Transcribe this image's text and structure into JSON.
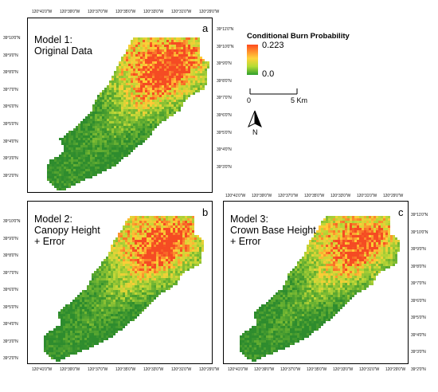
{
  "panels": [
    {
      "id": "a",
      "letter": "a",
      "title": "Model 1:\nOriginal Data"
    },
    {
      "id": "b",
      "letter": "b",
      "title": "Model 2:\nCanopy Height\n+ Error"
    },
    {
      "id": "c",
      "letter": "c",
      "title": "Model 3:\nCrown Base Height\n+ Error"
    }
  ],
  "longitude_labels": [
    "120°41'0\"W",
    "120°39'0\"W",
    "120°37'0\"W",
    "120°35'0\"W",
    "120°33'0\"W",
    "120°31'0\"W",
    "120°29'0\"W"
  ],
  "latitude_labels": [
    "39°11'0\"N",
    "39°10'0\"N",
    "39°9'0\"N",
    "39°8'0\"N",
    "39°7'0\"N",
    "39°6'0\"N",
    "39°5'0\"N",
    "39°4'0\"N",
    "39°3'0\"N",
    "39°2'0\"N"
  ],
  "legend": {
    "title": "Conditional Burn Probability",
    "max_label": "0.223",
    "min_label": "0.0",
    "colors": {
      "high": "#ff4a1e",
      "mid": "#ffd23a",
      "low": "#2e9f2e"
    }
  },
  "scale": {
    "start_label": "0",
    "end_label": "5 Km"
  },
  "north_label": "N"
}
